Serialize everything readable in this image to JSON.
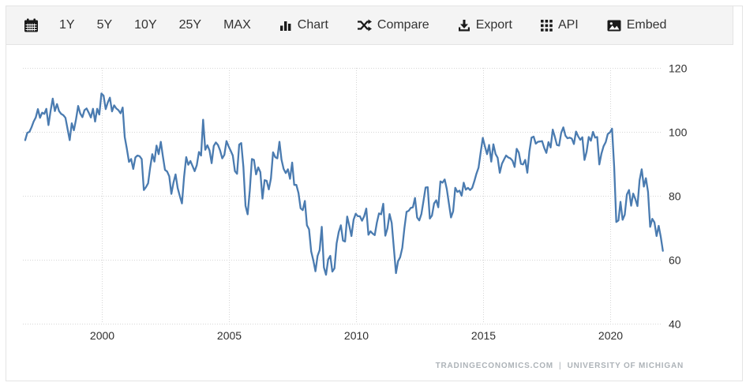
{
  "toolbar": {
    "ranges": [
      {
        "label": "1Y"
      },
      {
        "label": "5Y"
      },
      {
        "label": "10Y"
      },
      {
        "label": "25Y"
      },
      {
        "label": "MAX"
      }
    ],
    "actions": [
      {
        "label": "Chart",
        "icon": "bar-chart-icon"
      },
      {
        "label": "Compare",
        "icon": "shuffle-icon"
      },
      {
        "label": "Export",
        "icon": "download-icon"
      },
      {
        "label": "API",
        "icon": "grid-icon"
      },
      {
        "label": "Embed",
        "icon": "image-icon"
      }
    ]
  },
  "attribution": {
    "source": "TRADINGECONOMICS.COM",
    "divider": "|",
    "provider": "UNIVERSITY OF MICHIGAN"
  },
  "colors": {
    "line": "#4a7bb0",
    "grid": "#d6d6d6",
    "axis_text": "#2f2f2f",
    "toolbar_bg": "#f4f4f4",
    "border": "#e4e4e4",
    "attribution_text": "#adb3b8"
  },
  "chart_data": {
    "type": "line",
    "title": "",
    "xlabel": "",
    "ylabel": "",
    "grid": "dotted",
    "legend": "none",
    "x_ticks": [
      2000,
      2005,
      2010,
      2015,
      2020
    ],
    "y_ticks": [
      40,
      60,
      80,
      100,
      120
    ],
    "xlim": [
      1996.91,
      2022.03
    ],
    "ylim": [
      40,
      120
    ],
    "series": [
      {
        "start_year": 1997,
        "start_month": 1,
        "frequency": "monthly",
        "values": [
          97.4,
          99.7,
          100,
          101.4,
          103.2,
          104.5,
          107.1,
          104.4,
          106,
          105.6,
          107.2,
          102.1,
          106.6,
          110.4,
          106.5,
          108.7,
          106.5,
          105.6,
          105.2,
          104.4,
          100.9,
          97.4,
          102.7,
          100.5,
          103.9,
          108.1,
          105.7,
          104.6,
          106.8,
          107.3,
          106,
          104.5,
          107.2,
          103.2,
          107.2,
          105.4,
          112,
          111.3,
          107.1,
          109.2,
          110.7,
          106.4,
          108.3,
          107.3,
          106.8,
          105.8,
          107.6,
          98.4,
          94.7,
          90.6,
          91.5,
          88.4,
          92,
          92.6,
          92.4,
          91.5,
          81.8,
          82.7,
          83.9,
          88.8,
          93,
          90.7,
          95.7,
          93,
          96.9,
          92.4,
          88.1,
          87.6,
          86.1,
          80.6,
          84.2,
          86.7,
          82.4,
          79.9,
          77.6,
          86,
          92.1,
          89.7,
          90.9,
          89.3,
          87.7,
          89.6,
          93.7,
          92.6,
          103.8,
          94.4,
          95.8,
          94.2,
          90.2,
          95.6,
          96.7,
          95.9,
          94.2,
          91.7,
          92.8,
          97.1,
          95.5,
          94.1,
          92.6,
          87.7,
          86.9,
          96,
          96.5,
          89.1,
          76.9,
          74.2,
          81.6,
          91.5,
          91.2,
          86.7,
          88.9,
          87.4,
          79.1,
          84.9,
          84.7,
          82,
          85.4,
          93.6,
          92.1,
          91.7,
          96.9,
          91.3,
          88.4,
          87.1,
          88.3,
          85.3,
          90.4,
          83.4,
          83.4,
          80.9,
          76.1,
          75.5,
          78.4,
          70.8,
          69.5,
          62.6,
          59.8,
          56.4,
          61.2,
          63,
          70.3,
          57.6,
          55.3,
          60.1,
          61.2,
          56.3,
          57.3,
          65.1,
          68.7,
          70.8,
          66,
          65.7,
          73.5,
          70.6,
          67.4,
          72.5,
          74.4,
          73.6,
          73.6,
          72.2,
          73.6,
          76,
          67.8,
          68.9,
          68.2,
          67.7,
          71.6,
          74.5,
          74.2,
          77.5,
          67.5,
          69.8,
          74.3,
          71.5,
          63.7,
          55.8,
          59.5,
          60.8,
          63.7,
          69.9,
          75,
          75.3,
          76.2,
          76.4,
          79.3,
          73.2,
          72.3,
          74.3,
          78.3,
          82.6,
          82.7,
          72.9,
          73.8,
          77.6,
          78.6,
          76.4,
          84.5,
          84.1,
          85.1,
          82.1,
          77.5,
          73.2,
          75.1,
          82.5,
          81.2,
          81.6,
          80,
          84.1,
          81.9,
          82.5,
          81.8,
          82.5,
          84.6,
          86.9,
          88.8,
          93.6,
          98.1,
          95.4,
          93,
          95.9,
          90.7,
          96.1,
          93.1,
          91.9,
          87.2,
          90,
          91.3,
          92.6,
          92,
          91.7,
          91,
          89,
          94.7,
          93.5,
          90,
          89.8,
          91.2,
          87.2,
          93.8,
          98.2,
          98.5,
          96.3,
          96.9,
          97,
          97.1,
          95,
          93.4,
          96.8,
          95.1,
          100.7,
          98.5,
          95.9,
          95.7,
          99.7,
          101.4,
          98.8,
          98,
          98.2,
          97.9,
          96.2,
          100.1,
          98.6,
          97.5,
          98.3,
          91.2,
          93.8,
          98.4,
          97.2,
          100,
          98.2,
          98.4,
          89.8,
          93.2,
          95.5,
          96.8,
          99.3,
          99.8,
          101,
          89.1,
          71.8,
          72.3,
          78.1,
          72.5,
          74.1,
          80.4,
          81.8,
          76.9,
          80.7,
          79,
          76.8,
          84.9,
          88.3,
          82.9,
          85.5,
          81.2,
          70.3,
          72.8,
          71.7,
          67.4,
          70.6,
          67.2,
          62.8
        ]
      }
    ]
  }
}
